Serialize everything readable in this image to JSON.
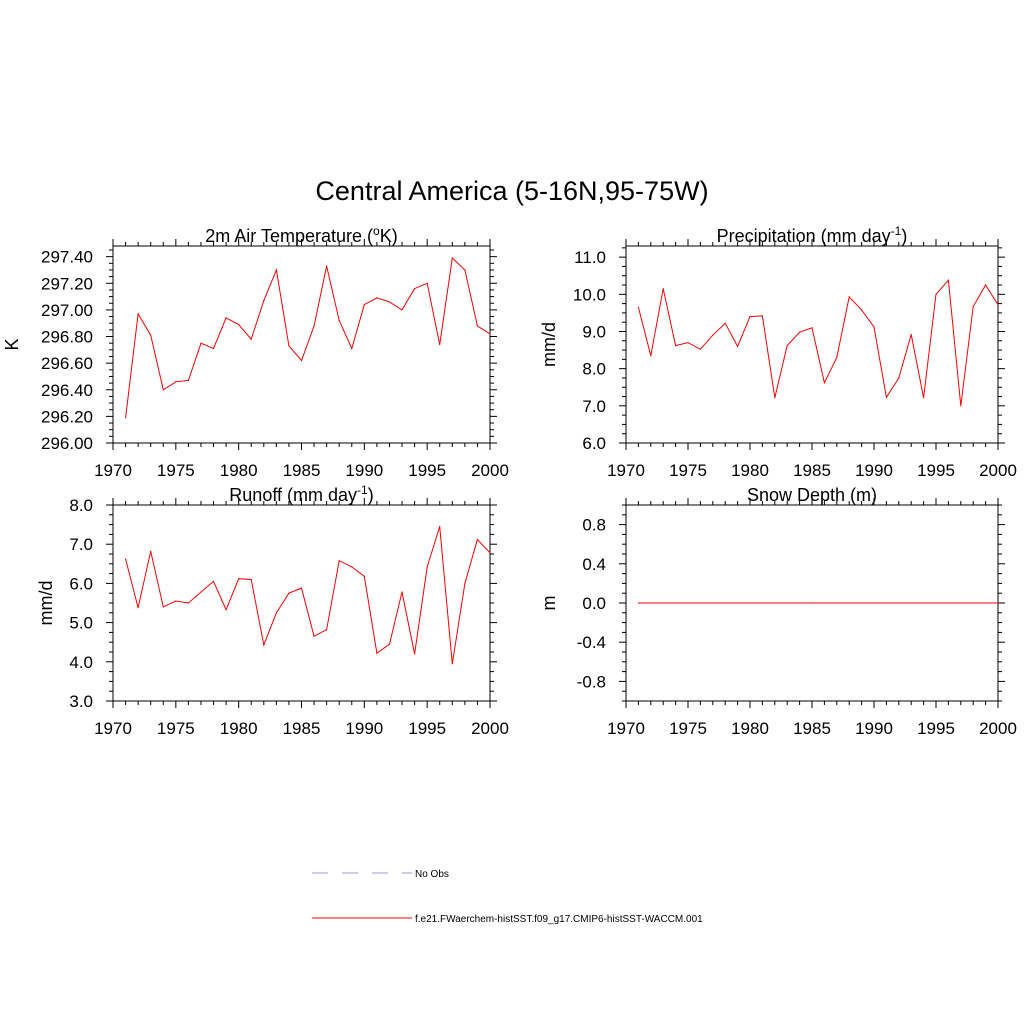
{
  "figure": {
    "title": "Central America (5-16N,95-75W)"
  },
  "colors": {
    "model_line": "#ff0000",
    "obs_line": "#9999dd",
    "axis": "#000000"
  },
  "legend": {
    "items": [
      {
        "label": "No Obs",
        "style": "dashed",
        "color": "#9999dd"
      },
      {
        "label": "f.e21.FWaerchem-histSST.f09_g17.CMIP6-histSST-WACCM.001",
        "style": "solid",
        "color": "#ff0000"
      }
    ]
  },
  "chart_data": [
    {
      "id": "tas",
      "type": "line",
      "title": "2m Air Temperature (",
      "title_sup": "o",
      "title_tail": "K)",
      "xlabel": "",
      "ylabel": "K",
      "xlim": [
        1970,
        2000
      ],
      "ylim": [
        296.0,
        297.48
      ],
      "xticks": [
        1970,
        1975,
        1980,
        1985,
        1990,
        1995,
        2000
      ],
      "yticks": [
        "296.00",
        "296.20",
        "296.40",
        "296.60",
        "296.80",
        "297.00",
        "297.20",
        "297.40"
      ],
      "x": [
        1971,
        1972,
        1973,
        1974,
        1975,
        1976,
        1977,
        1978,
        1979,
        1980,
        1981,
        1982,
        1983,
        1984,
        1985,
        1986,
        1987,
        1988,
        1989,
        1990,
        1991,
        1992,
        1993,
        1994,
        1995,
        1996,
        1997,
        1998,
        1999,
        2000
      ],
      "series": [
        {
          "name": "f.e21.FWaerchem-histSST.f09_g17.CMIP6-histSST-WACCM.001",
          "values": [
            296.19,
            296.97,
            296.81,
            296.4,
            296.46,
            296.47,
            296.75,
            296.71,
            296.94,
            296.89,
            296.78,
            297.07,
            297.3,
            296.73,
            296.62,
            296.88,
            297.33,
            296.92,
            296.71,
            297.04,
            297.09,
            297.06,
            297.0,
            297.16,
            297.2,
            296.74,
            297.39,
            297.3,
            296.88,
            296.82
          ]
        }
      ]
    },
    {
      "id": "pr",
      "type": "line",
      "title": "Precipitation (mm day",
      "title_sup": "-1",
      "title_tail": ")",
      "xlabel": "",
      "ylabel": "mm/d",
      "xlim": [
        1970,
        2000
      ],
      "ylim": [
        6.0,
        11.3
      ],
      "xticks": [
        1970,
        1975,
        1980,
        1985,
        1990,
        1995,
        2000
      ],
      "yticks": [
        "6.0",
        "7.0",
        "8.0",
        "9.0",
        "10.0",
        "11.0"
      ],
      "x": [
        1971,
        1972,
        1973,
        1974,
        1975,
        1976,
        1977,
        1978,
        1979,
        1980,
        1981,
        1982,
        1983,
        1984,
        1985,
        1986,
        1987,
        1988,
        1989,
        1990,
        1991,
        1992,
        1993,
        1994,
        1995,
        1996,
        1997,
        1998,
        1999,
        2000
      ],
      "series": [
        {
          "name": "f.e21.FWaerchem-histSST.f09_g17.CMIP6-histSST-WACCM.001",
          "values": [
            9.65,
            8.35,
            10.15,
            8.62,
            8.7,
            8.52,
            8.9,
            9.22,
            8.6,
            9.4,
            9.42,
            7.22,
            8.62,
            8.98,
            9.1,
            7.62,
            8.3,
            9.93,
            9.58,
            9.12,
            7.23,
            7.75,
            8.92,
            7.22,
            10.0,
            10.38,
            7.0,
            9.67,
            10.25,
            9.72
          ]
        }
      ]
    },
    {
      "id": "mrro",
      "type": "line",
      "title": "Runoff (mm day",
      "title_sup": "-1",
      "title_tail": ")",
      "xlabel": "",
      "ylabel": "mm/d",
      "xlim": [
        1970,
        2000
      ],
      "ylim": [
        3.0,
        8.0
      ],
      "xticks": [
        1970,
        1975,
        1980,
        1985,
        1990,
        1995,
        2000
      ],
      "yticks": [
        "3.0",
        "4.0",
        "5.0",
        "6.0",
        "7.0",
        "8.0"
      ],
      "x": [
        1971,
        1972,
        1973,
        1974,
        1975,
        1976,
        1977,
        1978,
        1979,
        1980,
        1981,
        1982,
        1983,
        1984,
        1985,
        1986,
        1987,
        1988,
        1989,
        1990,
        1991,
        1992,
        1993,
        1994,
        1995,
        1996,
        1997,
        1998,
        1999,
        2000
      ],
      "series": [
        {
          "name": "f.e21.FWaerchem-histSST.f09_g17.CMIP6-histSST-WACCM.001",
          "values": [
            6.62,
            5.38,
            6.82,
            5.4,
            5.55,
            5.5,
            5.78,
            6.05,
            5.33,
            6.12,
            6.1,
            4.43,
            5.25,
            5.75,
            5.88,
            4.65,
            4.82,
            6.58,
            6.42,
            6.18,
            4.22,
            4.45,
            5.78,
            4.2,
            6.42,
            7.45,
            3.95,
            6.0,
            7.12,
            6.78
          ]
        }
      ]
    },
    {
      "id": "snd",
      "type": "line",
      "title": "Snow Depth (m)",
      "title_sup": "",
      "title_tail": "",
      "xlabel": "",
      "ylabel": "m",
      "xlim": [
        1970,
        2000
      ],
      "ylim": [
        -1.0,
        1.0
      ],
      "xticks": [
        1970,
        1975,
        1980,
        1985,
        1990,
        1995,
        2000
      ],
      "yticks": [
        "-0.8",
        "-0.4",
        "0.0",
        "0.4",
        "0.8"
      ],
      "x": [
        1971,
        1972,
        1973,
        1974,
        1975,
        1976,
        1977,
        1978,
        1979,
        1980,
        1981,
        1982,
        1983,
        1984,
        1985,
        1986,
        1987,
        1988,
        1989,
        1990,
        1991,
        1992,
        1993,
        1994,
        1995,
        1996,
        1997,
        1998,
        1999,
        2000
      ],
      "series": [
        {
          "name": "f.e21.FWaerchem-histSST.f09_g17.CMIP6-histSST-WACCM.001",
          "values": [
            0,
            0,
            0,
            0,
            0,
            0,
            0,
            0,
            0,
            0,
            0,
            0,
            0,
            0,
            0,
            0,
            0,
            0,
            0,
            0,
            0,
            0,
            0,
            0,
            0,
            0,
            0,
            0,
            0,
            0
          ]
        }
      ]
    }
  ]
}
